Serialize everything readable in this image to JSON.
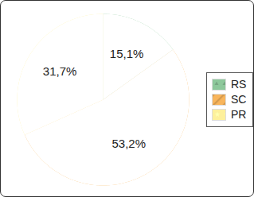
{
  "chart_data": {
    "type": "pie",
    "categories": [
      "RS",
      "SC",
      "PR"
    ],
    "values": [
      15.1,
      53.2,
      31.7
    ],
    "value_labels": [
      "15,1%",
      "53,2%",
      "31,7%"
    ],
    "colors": [
      "#8dc89b",
      "#f8b55c",
      "#fdf09b"
    ],
    "data_labels": true,
    "legend": "right"
  }
}
